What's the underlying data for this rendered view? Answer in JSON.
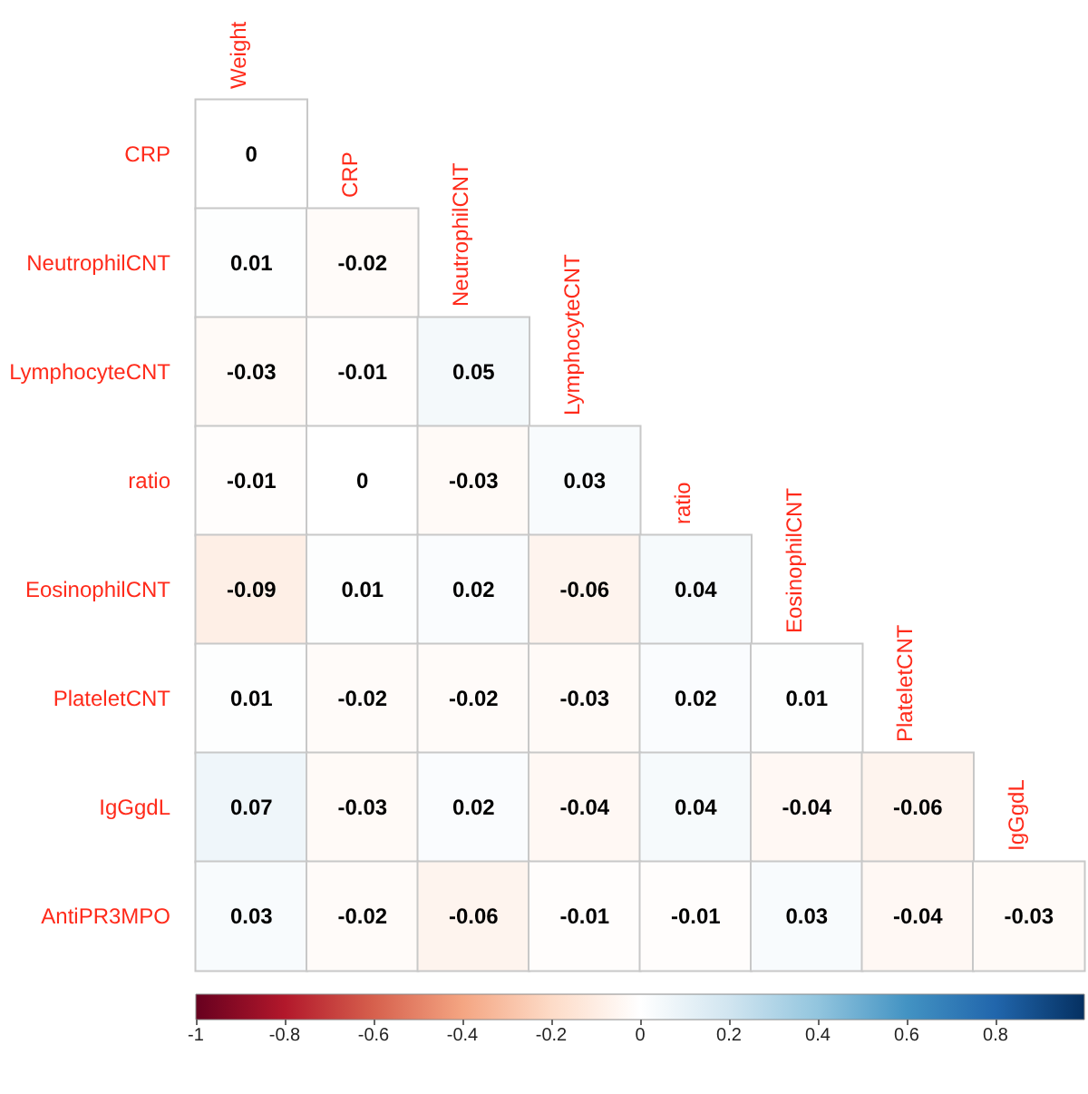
{
  "chart_data": {
    "type": "heatmap",
    "categories": [
      "Weight",
      "CRP",
      "NeutrophilCNT",
      "LymphocyteCNT",
      "ratio",
      "EosinophilCNT",
      "PlateletCNT",
      "IgGgdL"
    ],
    "y_categories": [
      "CRP",
      "NeutrophilCNT",
      "LymphocyteCNT",
      "ratio",
      "EosinophilCNT",
      "PlateletCNT",
      "IgGgdL",
      "AntiPR3MPO"
    ],
    "cells": [
      [
        0,
        null,
        null,
        null,
        null,
        null,
        null,
        null
      ],
      [
        0.01,
        -0.02,
        null,
        null,
        null,
        null,
        null,
        null
      ],
      [
        -0.03,
        -0.01,
        0.05,
        null,
        null,
        null,
        null,
        null
      ],
      [
        -0.01,
        0,
        -0.03,
        0.03,
        null,
        null,
        null,
        null
      ],
      [
        -0.09,
        0.01,
        0.02,
        -0.06,
        0.04,
        null,
        null,
        null
      ],
      [
        0.01,
        -0.02,
        -0.02,
        -0.03,
        0.02,
        0.01,
        null,
        null
      ],
      [
        0.07,
        -0.03,
        0.02,
        -0.04,
        0.04,
        -0.04,
        -0.06,
        null
      ],
      [
        0.03,
        -0.02,
        -0.06,
        -0.01,
        -0.01,
        0.03,
        -0.04,
        -0.03
      ]
    ],
    "clim": [
      -1,
      1
    ],
    "cticks": [
      -1,
      -0.8,
      -0.6,
      -0.4,
      -0.2,
      0,
      0.2,
      0.4,
      0.6,
      0.8
    ],
    "data_labels": true
  }
}
